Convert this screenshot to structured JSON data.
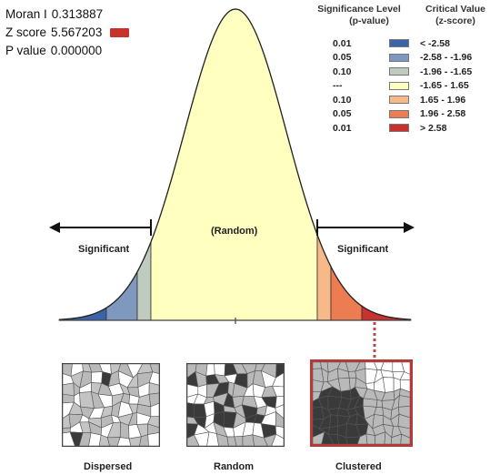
{
  "stats": {
    "moran_label": "Moran I",
    "moran_value": "0.313887",
    "z_label": "Z score",
    "z_value": "5.567203",
    "p_label": "P value",
    "p_value": "0.000000",
    "z_swatch_color": "#c8312d"
  },
  "legend": {
    "significance_header": "Significance Level",
    "significance_sub": "(p-value)",
    "critical_header": "Critical Value",
    "critical_sub": "(z-score)",
    "rows": [
      {
        "p": "0.01",
        "z": "< -2.58",
        "color": "#3b64a8"
      },
      {
        "p": "0.05",
        "z": "-2.58 - -1.96",
        "color": "#7f98bd"
      },
      {
        "p": "0.10",
        "z": "-1.96 - -1.65",
        "color": "#bfcbbf"
      },
      {
        "p": "---",
        "z": "-1.65 - 1.65",
        "color": "#ffffc0"
      },
      {
        "p": "0.10",
        "z": "1.65 - 1.96",
        "color": "#f6b987"
      },
      {
        "p": "0.05",
        "z": "1.96 - 2.58",
        "color": "#ec7c52"
      },
      {
        "p": "0.01",
        "z": "> 2.58",
        "color": "#c8312d"
      }
    ]
  },
  "curve": {
    "center_label": "(Random)",
    "left_label": "Significant",
    "right_label": "Significant"
  },
  "patterns": {
    "dispersed_label": "Dispersed",
    "random_label": "Random",
    "clustered_label": "Clustered"
  }
}
